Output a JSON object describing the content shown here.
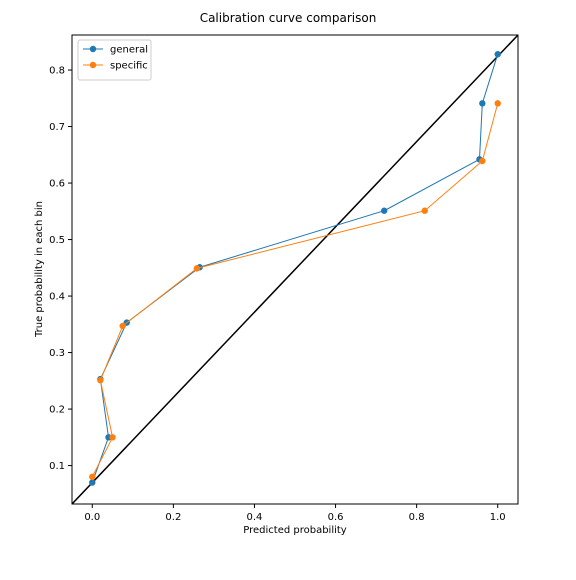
{
  "chart_data": {
    "type": "line",
    "title": "Calibration curve comparison",
    "xlabel": "Predicted probability",
    "ylabel": "True probability in each bin",
    "xlim": [
      -0.05,
      1.05
    ],
    "ylim": [
      0.032,
      0.862
    ],
    "xticks": [
      "0.0",
      "0.2",
      "0.4",
      "0.6",
      "0.8",
      "1.0"
    ],
    "xtick_values": [
      0.0,
      0.2,
      0.4,
      0.6,
      0.8,
      1.0
    ],
    "yticks": [
      "0.1",
      "0.2",
      "0.3",
      "0.4",
      "0.5",
      "0.6",
      "0.7",
      "0.8"
    ],
    "ytick_values": [
      0.1,
      0.2,
      0.3,
      0.4,
      0.5,
      0.6,
      0.7,
      0.8
    ],
    "grid": false,
    "legend_position": "upper-left",
    "reference_line": {
      "color": "#000000",
      "points": [
        [
          -0.05,
          0.032
        ],
        [
          1.05,
          0.862
        ]
      ]
    },
    "series": [
      {
        "name": "general",
        "color": "#1f77b4",
        "x": [
          0.0,
          0.04,
          0.02,
          0.085,
          0.265,
          0.72,
          0.955,
          0.962,
          1.0
        ],
        "y": [
          0.07,
          0.15,
          0.253,
          0.353,
          0.451,
          0.551,
          0.642,
          0.741,
          0.828
        ]
      },
      {
        "name": "specific",
        "color": "#ff7f0e",
        "x": [
          0.0,
          0.05,
          0.02,
          0.075,
          0.258,
          0.82,
          0.962,
          1.0
        ],
        "y": [
          0.08,
          0.15,
          0.251,
          0.347,
          0.449,
          0.551,
          0.639,
          0.741
        ]
      }
    ]
  }
}
